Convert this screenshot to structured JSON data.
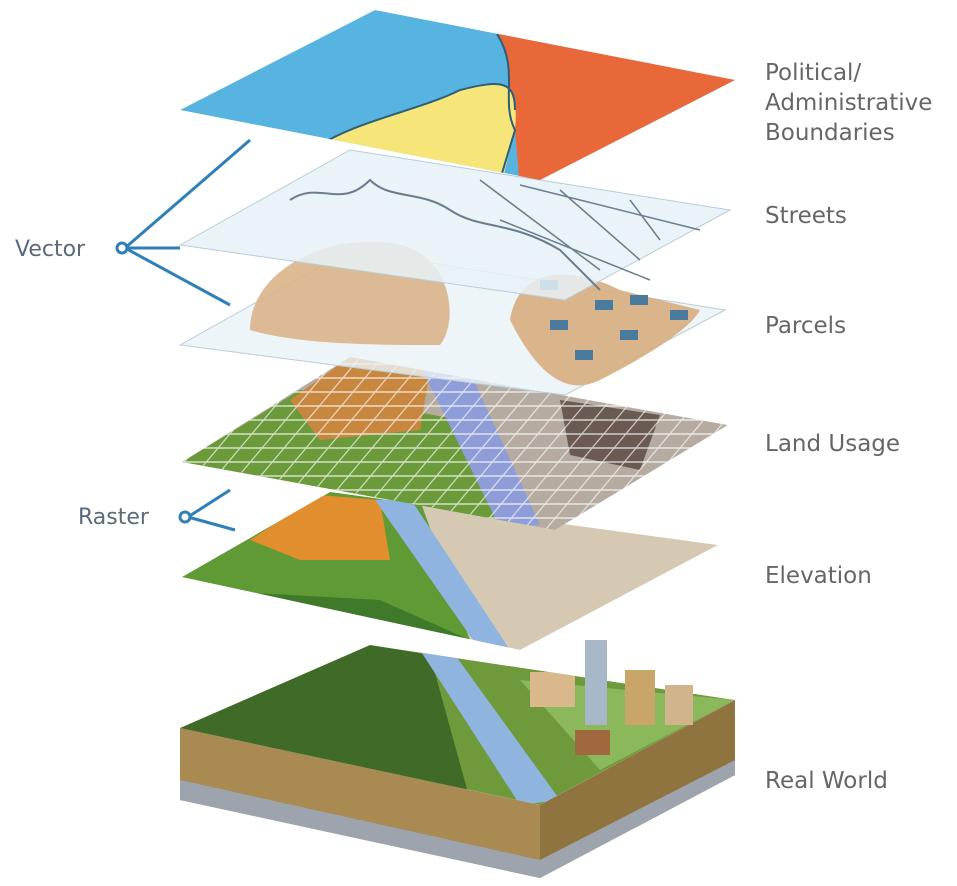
{
  "layers": [
    {
      "label": [
        "Political/",
        "Administrative",
        "Boundaries"
      ]
    },
    {
      "label": [
        "Streets"
      ]
    },
    {
      "label": [
        "Parcels"
      ]
    },
    {
      "label": [
        "Land Usage"
      ]
    },
    {
      "label": [
        "Elevation"
      ]
    },
    {
      "label": [
        "Real World"
      ]
    }
  ],
  "groups": {
    "vector": "Vector",
    "raster": "Raster"
  }
}
